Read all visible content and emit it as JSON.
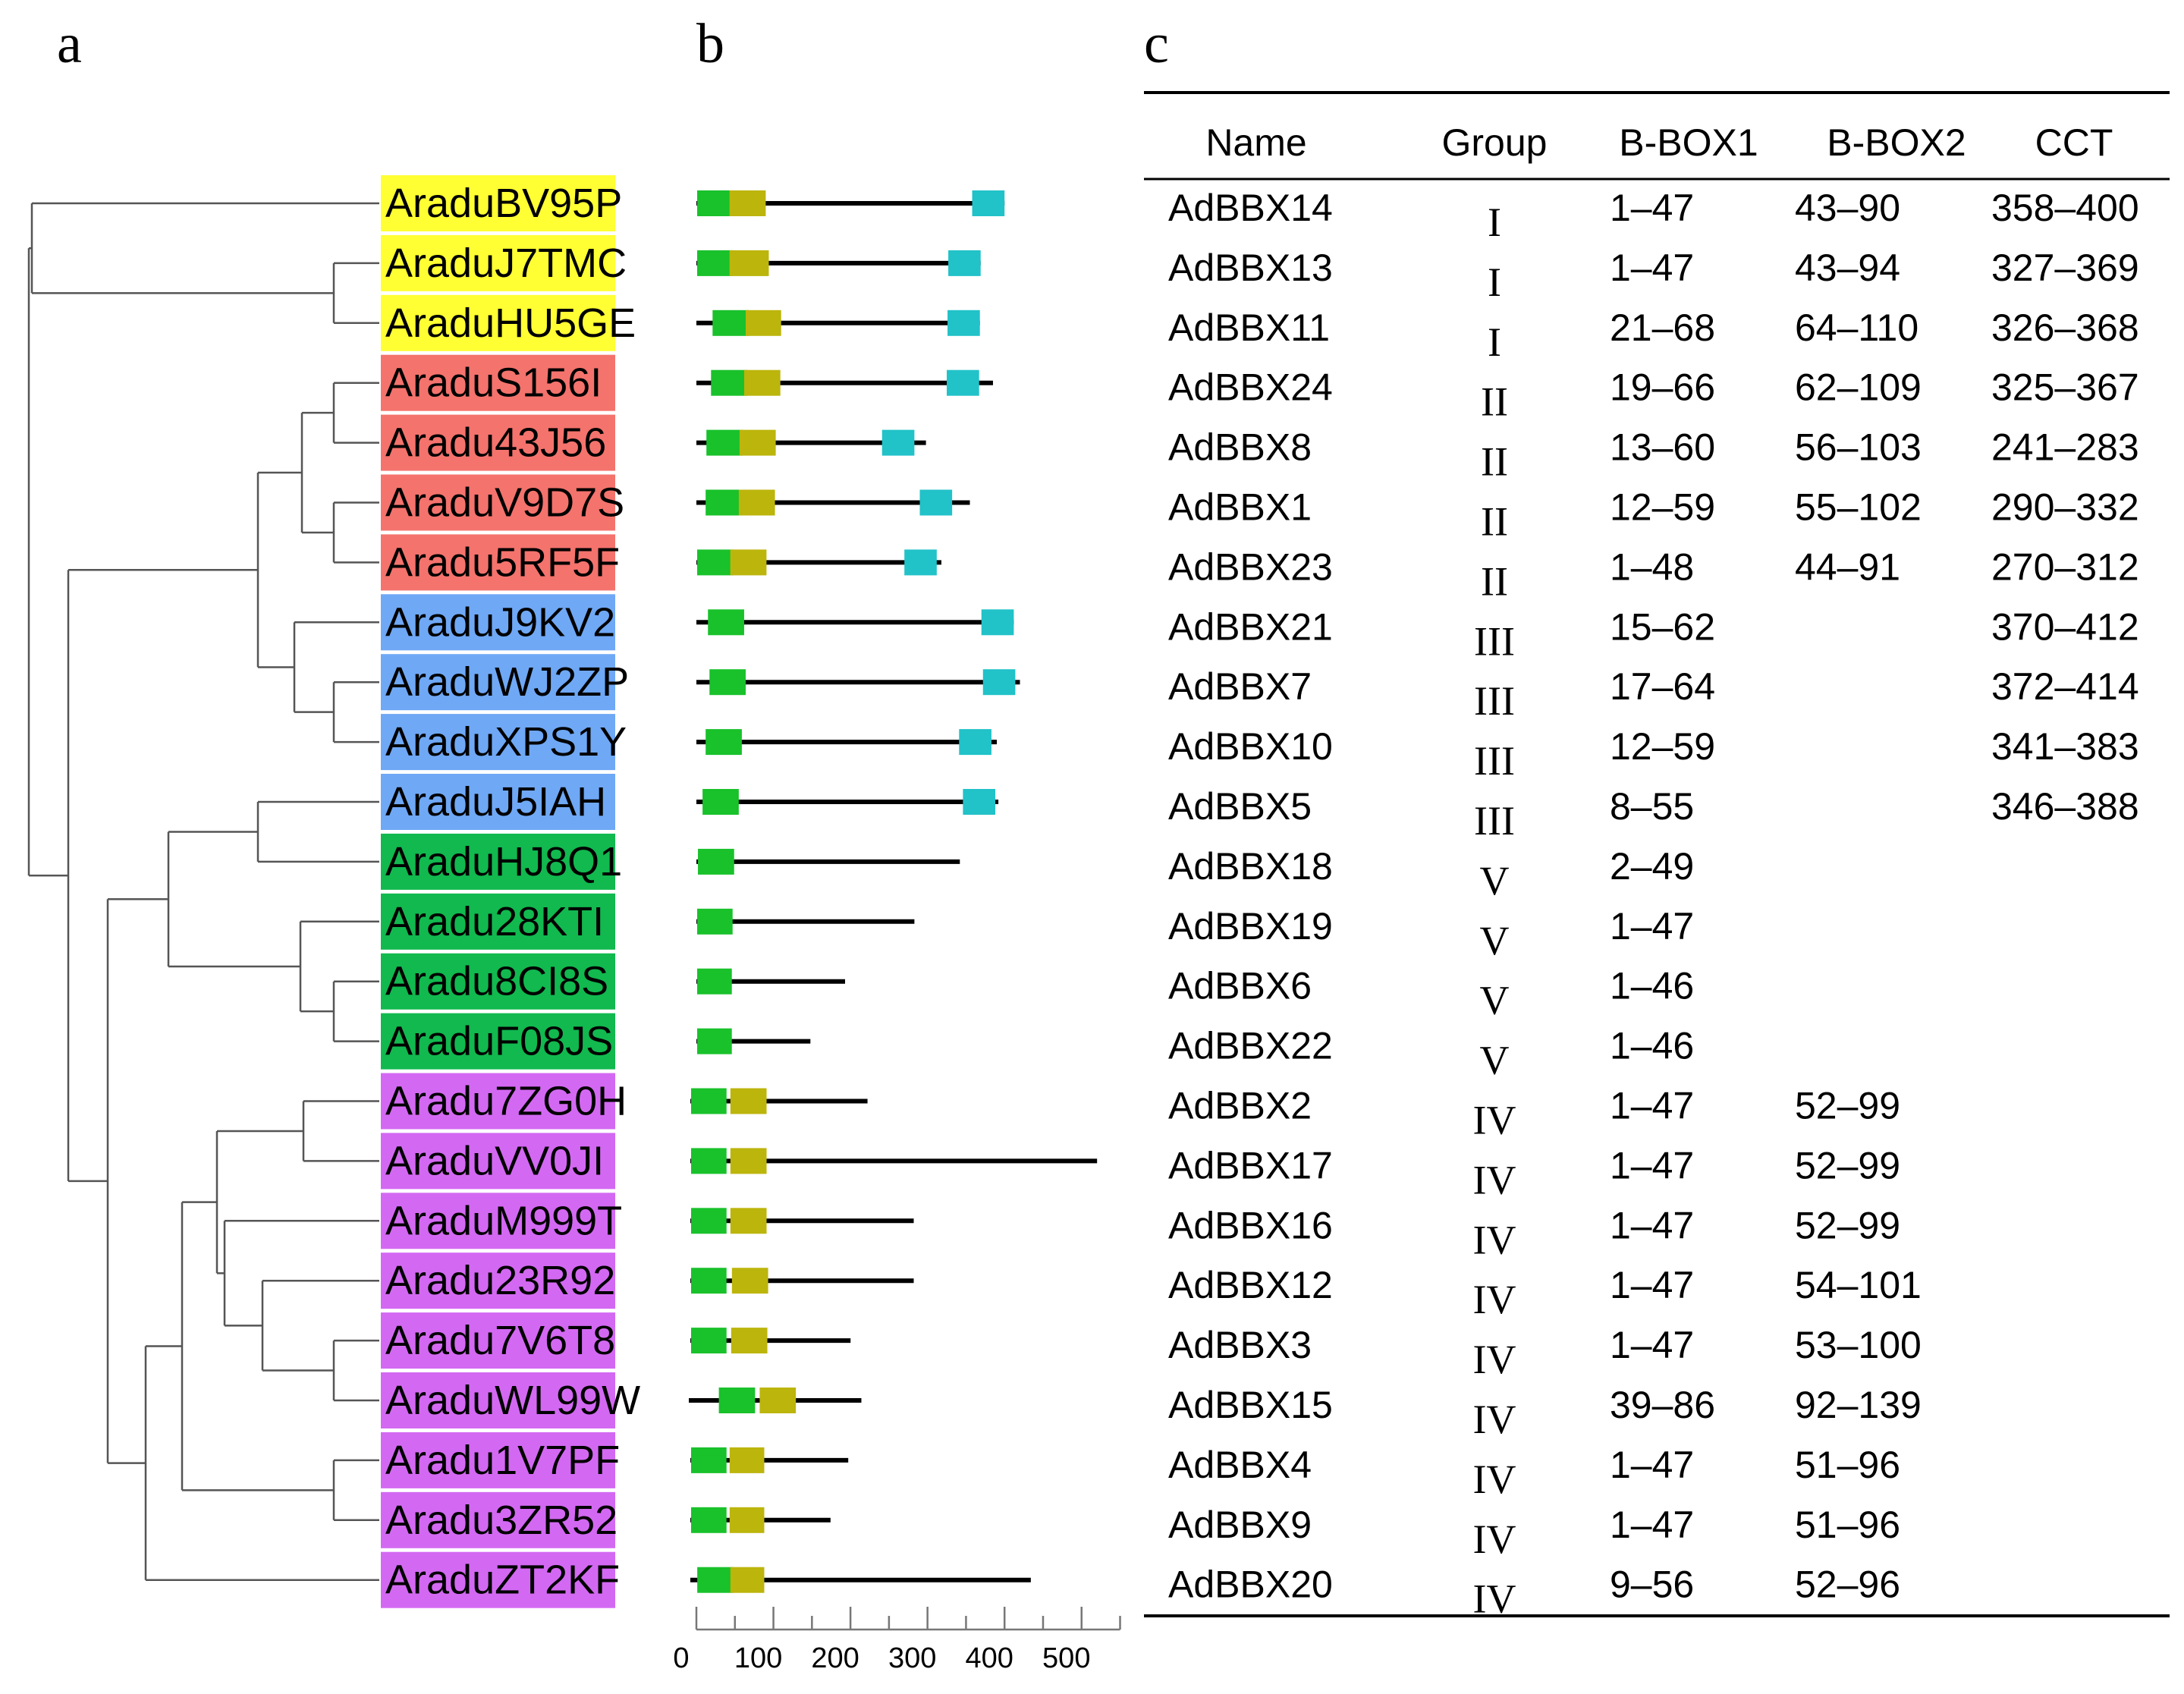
{
  "panels": {
    "a": {
      "letter": "a"
    },
    "b": {
      "letter": "b"
    },
    "c": {
      "letter": "c"
    }
  },
  "colors": {
    "group_yellow": "#ffff33",
    "group_red": "#f4736d",
    "group_blue": "#6fa8f5",
    "group_green": "#11b94f",
    "group_purple": "#d369f2",
    "domain_bbox1": "#19c12b",
    "domain_bbox2": "#bcb50c",
    "domain_cct": "#21c2c8"
  },
  "genes": [
    {
      "name": "AraduBV95P",
      "color": "group_yellow",
      "length": 400,
      "domains": [
        {
          "t": "b1",
          "s": 1,
          "e": 47
        },
        {
          "t": "b2",
          "s": 43,
          "e": 90
        },
        {
          "t": "cct",
          "s": 358,
          "e": 400
        }
      ]
    },
    {
      "name": "AraduJ7TMC",
      "color": "group_yellow",
      "length": 369,
      "domains": [
        {
          "t": "b1",
          "s": 1,
          "e": 47
        },
        {
          "t": "b2",
          "s": 43,
          "e": 94
        },
        {
          "t": "cct",
          "s": 327,
          "e": 369
        }
      ]
    },
    {
      "name": "AraduHU5GE",
      "color": "group_yellow",
      "length": 368,
      "domains": [
        {
          "t": "b1",
          "s": 21,
          "e": 68
        },
        {
          "t": "b2",
          "s": 64,
          "e": 110
        },
        {
          "t": "cct",
          "s": 326,
          "e": 368
        }
      ]
    },
    {
      "name": "AraduS156I",
      "color": "group_red",
      "length": 385,
      "domains": [
        {
          "t": "b1",
          "s": 19,
          "e": 66
        },
        {
          "t": "b2",
          "s": 62,
          "e": 109
        },
        {
          "t": "cct",
          "s": 325,
          "e": 367
        }
      ]
    },
    {
      "name": "Aradu43J56",
      "color": "group_red",
      "length": 298,
      "domains": [
        {
          "t": "b1",
          "s": 13,
          "e": 60
        },
        {
          "t": "b2",
          "s": 56,
          "e": 103
        },
        {
          "t": "cct",
          "s": 241,
          "e": 283
        }
      ]
    },
    {
      "name": "AraduV9D7S",
      "color": "group_red",
      "length": 355,
      "domains": [
        {
          "t": "b1",
          "s": 12,
          "e": 59
        },
        {
          "t": "b2",
          "s": 55,
          "e": 102
        },
        {
          "t": "cct",
          "s": 290,
          "e": 332
        }
      ]
    },
    {
      "name": "Aradu5RF5F",
      "color": "group_red",
      "length": 318,
      "domains": [
        {
          "t": "b1",
          "s": 1,
          "e": 48
        },
        {
          "t": "b2",
          "s": 44,
          "e": 91
        },
        {
          "t": "cct",
          "s": 270,
          "e": 312
        }
      ]
    },
    {
      "name": "AraduJ9KV2",
      "color": "group_blue",
      "length": 412,
      "domains": [
        {
          "t": "b1",
          "s": 15,
          "e": 62
        },
        {
          "t": "cct",
          "s": 370,
          "e": 412
        }
      ]
    },
    {
      "name": "AraduWJ2ZP",
      "color": "group_blue",
      "length": 420,
      "domains": [
        {
          "t": "b1",
          "s": 17,
          "e": 64
        },
        {
          "t": "cct",
          "s": 372,
          "e": 414
        }
      ]
    },
    {
      "name": "AraduXPS1Y",
      "color": "group_blue",
      "length": 390,
      "domains": [
        {
          "t": "b1",
          "s": 12,
          "e": 59
        },
        {
          "t": "cct",
          "s": 341,
          "e": 383
        }
      ]
    },
    {
      "name": "AraduJ5IAH",
      "color": "group_blue",
      "length": 392,
      "domains": [
        {
          "t": "b1",
          "s": 8,
          "e": 55
        },
        {
          "t": "cct",
          "s": 346,
          "e": 388
        }
      ]
    },
    {
      "name": "AraduHJ8Q1",
      "color": "group_green",
      "length": 342,
      "domains": [
        {
          "t": "b1",
          "s": 2,
          "e": 49
        }
      ]
    },
    {
      "name": "Aradu28KTI",
      "color": "group_green",
      "length": 283,
      "domains": [
        {
          "t": "b1",
          "s": 1,
          "e": 47
        }
      ]
    },
    {
      "name": "Aradu8CI8S",
      "color": "group_green",
      "length": 193,
      "domains": [
        {
          "t": "b1",
          "s": 1,
          "e": 46
        }
      ]
    },
    {
      "name": "AraduF08JS",
      "color": "group_green",
      "length": 148,
      "domains": [
        {
          "t": "b1",
          "s": 1,
          "e": 46
        }
      ]
    },
    {
      "name": "Aradu7ZG0H",
      "color": "group_purple",
      "length": 230,
      "domains": [
        {
          "t": "b1",
          "s": 1,
          "e": 47
        },
        {
          "t": "b2",
          "s": 52,
          "e": 99
        }
      ]
    },
    {
      "name": "AraduVV0JI",
      "color": "group_purple",
      "length": 528,
      "domains": [
        {
          "t": "b1",
          "s": 1,
          "e": 47
        },
        {
          "t": "b2",
          "s": 52,
          "e": 99
        }
      ]
    },
    {
      "name": "AraduM999T",
      "color": "group_purple",
      "length": 290,
      "domains": [
        {
          "t": "b1",
          "s": 1,
          "e": 47
        },
        {
          "t": "b2",
          "s": 52,
          "e": 99
        }
      ]
    },
    {
      "name": "Aradu23R92",
      "color": "group_purple",
      "length": 290,
      "domains": [
        {
          "t": "b1",
          "s": 1,
          "e": 47
        },
        {
          "t": "b2",
          "s": 54,
          "e": 101
        }
      ]
    },
    {
      "name": "Aradu7V6T8",
      "color": "group_purple",
      "length": 208,
      "domains": [
        {
          "t": "b1",
          "s": 1,
          "e": 47
        },
        {
          "t": "b2",
          "s": 53,
          "e": 100
        }
      ]
    },
    {
      "name": "AraduWL99W",
      "color": "group_purple",
      "length": 224,
      "domains": [
        {
          "t": "b1",
          "s": 39,
          "e": 86
        },
        {
          "t": "b2",
          "s": 92,
          "e": 139
        }
      ]
    },
    {
      "name": "Aradu1V7PF",
      "color": "group_purple",
      "length": 205,
      "domains": [
        {
          "t": "b1",
          "s": 1,
          "e": 47
        },
        {
          "t": "b2",
          "s": 51,
          "e": 96
        }
      ]
    },
    {
      "name": "Aradu3ZR52",
      "color": "group_purple",
      "length": 182,
      "domains": [
        {
          "t": "b1",
          "s": 1,
          "e": 47
        },
        {
          "t": "b2",
          "s": 51,
          "e": 96
        }
      ]
    },
    {
      "name": "AraduZT2KF",
      "color": "group_purple",
      "length": 442,
      "domains": [
        {
          "t": "b1",
          "s": 9,
          "e": 56
        },
        {
          "t": "b2",
          "s": 52,
          "e": 96
        }
      ]
    }
  ],
  "scale_axis": {
    "ticks": [
      "0",
      "100",
      "200",
      "300",
      "400",
      "500"
    ],
    "max": 550
  },
  "table": {
    "headers": [
      "Name",
      "Group",
      "B-BOX1",
      "B-BOX2",
      "CCT"
    ],
    "rows": [
      [
        "AdBBX14",
        "I",
        "1–47",
        "43–90",
        "358–400"
      ],
      [
        "AdBBX13",
        "I",
        "1–47",
        "43–94",
        "327–369"
      ],
      [
        "AdBBX11",
        "I",
        "21–68",
        "64–110",
        "326–368"
      ],
      [
        "AdBBX24",
        "II",
        "19–66",
        "62–109",
        "325–367"
      ],
      [
        "AdBBX8",
        "II",
        "13–60",
        "56–103",
        "241–283"
      ],
      [
        "AdBBX1",
        "II",
        "12–59",
        "55–102",
        "290–332"
      ],
      [
        "AdBBX23",
        "II",
        "1–48",
        "44–91",
        "270–312"
      ],
      [
        "AdBBX21",
        "III",
        "15–62",
        "",
        "370–412"
      ],
      [
        "AdBBX7",
        "III",
        "17–64",
        "",
        "372–414"
      ],
      [
        "AdBBX10",
        "III",
        "12–59",
        "",
        "341–383"
      ],
      [
        "AdBBX5",
        "III",
        "8–55",
        "",
        "346–388"
      ],
      [
        "AdBBX18",
        "V",
        "2–49",
        "",
        ""
      ],
      [
        "AdBBX19",
        "V",
        "1–47",
        "",
        ""
      ],
      [
        "AdBBX6",
        "V",
        "1–46",
        "",
        ""
      ],
      [
        "AdBBX22",
        "V",
        "1–46",
        "",
        ""
      ],
      [
        "AdBBX2",
        "IV",
        "1–47",
        "52–99",
        ""
      ],
      [
        "AdBBX17",
        "IV",
        "1–47",
        "52–99",
        ""
      ],
      [
        "AdBBX16",
        "IV",
        "1–47",
        "52–99",
        ""
      ],
      [
        "AdBBX12",
        "IV",
        "1–47",
        "54–101",
        ""
      ],
      [
        "AdBBX3",
        "IV",
        "1–47",
        "53–100",
        ""
      ],
      [
        "AdBBX15",
        "IV",
        "39–86",
        "92–139",
        ""
      ],
      [
        "AdBBX4",
        "IV",
        "1–47",
        "51–96",
        ""
      ],
      [
        "AdBBX9",
        "IV",
        "1–47",
        "51–96",
        ""
      ],
      [
        "AdBBX20",
        "IV",
        "9–56",
        "52–96",
        ""
      ]
    ]
  }
}
